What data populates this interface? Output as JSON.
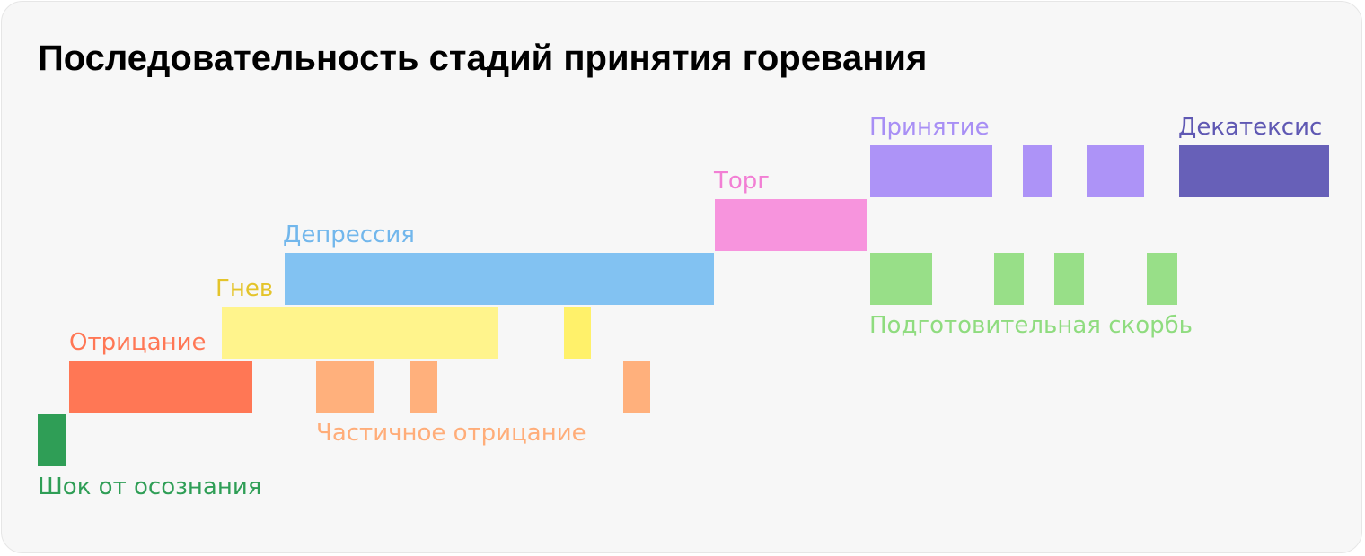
{
  "title": "Последовательность стадий принятия горевания",
  "stages": [
    {
      "id": "shock",
      "label": "Шок от осознания",
      "color": "#2f9e56",
      "text_color": "#2f9e56"
    },
    {
      "id": "denial",
      "label": "Отрицание",
      "color": "#ff7755",
      "text_color": "#ff7755"
    },
    {
      "id": "partial-denial",
      "label": "Частичное отрицание",
      "color": "#ffb07c",
      "text_color": "#ffad79"
    },
    {
      "id": "anger",
      "label": "Гнев",
      "color": "#fff48c",
      "accent_color": "#fff16a",
      "text_color": "#e4c42b"
    },
    {
      "id": "depression",
      "label": "Депрессия",
      "color": "#82c2f2",
      "text_color": "#72b7ec"
    },
    {
      "id": "bargaining",
      "label": "Торг",
      "color": "#f794dd",
      "text_color": "#f27fd4"
    },
    {
      "id": "acceptance",
      "label": "Принятие",
      "color": "#ad93f7",
      "text_color": "#a88ff5"
    },
    {
      "id": "decathexis",
      "label": "Декатексис",
      "color": "#6760b8",
      "text_color": "#5f58b3"
    },
    {
      "id": "preparatory-grief",
      "label": "Подготовительная скорбь",
      "color": "#98df88",
      "text_color": "#8fdc7f"
    }
  ]
}
